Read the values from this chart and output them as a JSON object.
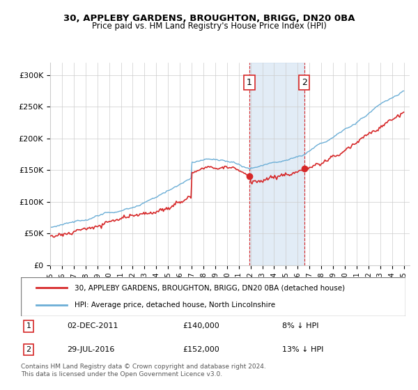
{
  "title1": "30, APPLEBY GARDENS, BROUGHTON, BRIGG, DN20 0BA",
  "title2": "Price paid vs. HM Land Registry's House Price Index (HPI)",
  "ylabel_ticks": [
    "£0",
    "£50K",
    "£100K",
    "£150K",
    "£200K",
    "£250K",
    "£300K"
  ],
  "ytick_values": [
    0,
    50000,
    100000,
    150000,
    200000,
    250000,
    300000
  ],
  "ylim": [
    0,
    320000
  ],
  "sale1_date": "02-DEC-2011",
  "sale1_price": 140000,
  "sale1_label": "1",
  "sale1_pct": "8% ↓ HPI",
  "sale2_date": "29-JUL-2016",
  "sale2_label": "2",
  "sale2_price": 152000,
  "sale2_pct": "13% ↓ HPI",
  "legend_line1": "30, APPLEBY GARDENS, BROUGHTON, BRIGG, DN20 0BA (detached house)",
  "legend_line2": "HPI: Average price, detached house, North Lincolnshire",
  "footer1": "Contains HM Land Registry data © Crown copyright and database right 2024.",
  "footer2": "This data is licensed under the Open Government Licence v3.0.",
  "hpi_color": "#6baed6",
  "price_color": "#d62728",
  "shade_color": "#c6dbef",
  "marker_color_1": "#d62728",
  "marker_color_2": "#d62728",
  "annotation_box_color": "#d62728",
  "background_color": "#ffffff",
  "grid_color": "#cccccc"
}
